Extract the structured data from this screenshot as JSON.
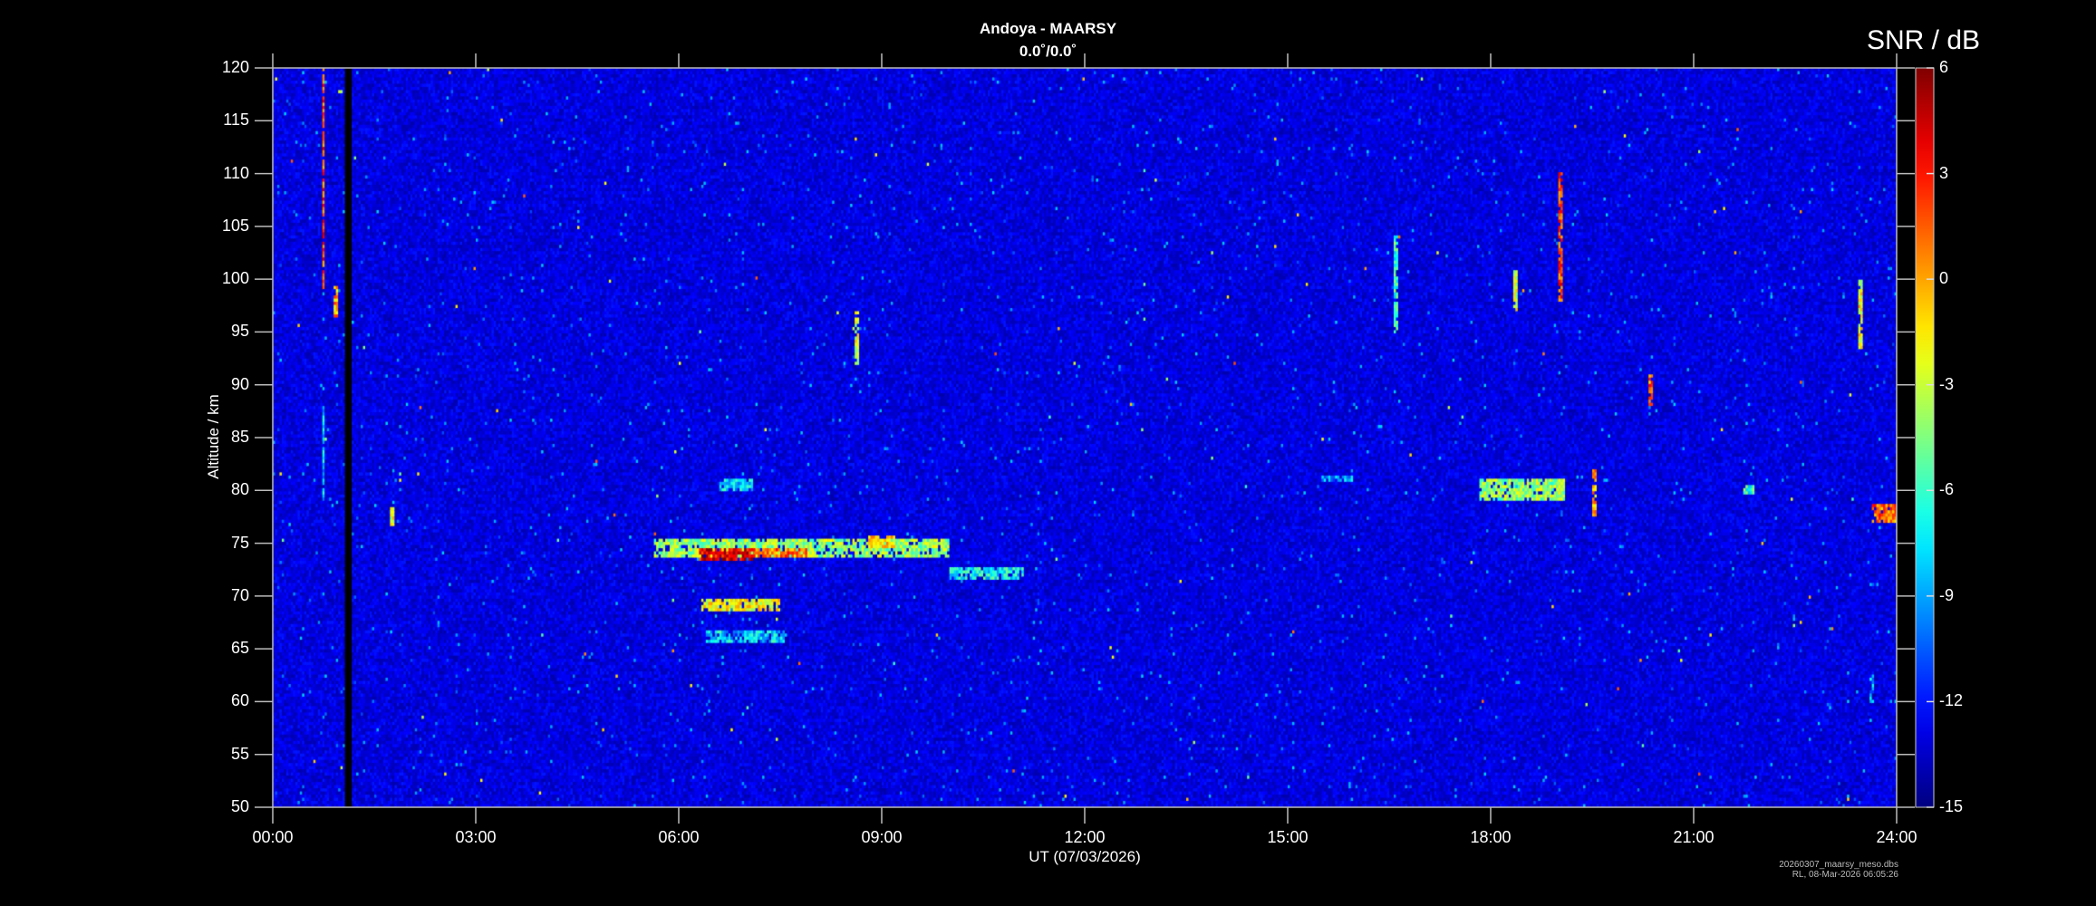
{
  "chart_data": {
    "type": "heatmap",
    "title": "Andoya - MAARSY",
    "subtitle": "0.0˚/0.0˚",
    "xlabel": "UT (07/03/2026)",
    "ylabel": "Altitude / km",
    "colorbar_label": "SNR / dB",
    "x_unit": "hours UT",
    "xlim": [
      0,
      24
    ],
    "ylim": [
      50,
      120
    ],
    "clim": [
      -15,
      6
    ],
    "colormap": "jet",
    "x_ticks": [
      "00:00",
      "03:00",
      "06:00",
      "09:00",
      "12:00",
      "15:00",
      "18:00",
      "21:00",
      "24:00"
    ],
    "y_ticks": [
      "50",
      "55",
      "60",
      "65",
      "70",
      "75",
      "80",
      "85",
      "90",
      "95",
      "100",
      "105",
      "110",
      "115",
      "120"
    ],
    "colorbar_ticks": [
      "6",
      "3",
      "0",
      "-3",
      "-6",
      "-9",
      "-12",
      "-15"
    ],
    "background_snr": -13,
    "data_gaps": [
      {
        "t_start": 1.07,
        "t_end": 1.17
      }
    ],
    "echo_regions": [
      {
        "t_start": 5.65,
        "t_end": 10.0,
        "alt_low": 73.5,
        "alt_high": 75.5,
        "snr": -4
      },
      {
        "t_start": 6.3,
        "t_end": 7.1,
        "alt_low": 73.2,
        "alt_high": 74.6,
        "snr": 4
      },
      {
        "t_start": 7.1,
        "t_end": 7.9,
        "alt_low": 73.6,
        "alt_high": 74.6,
        "snr": 1
      },
      {
        "t_start": 8.8,
        "t_end": 9.2,
        "alt_low": 74.6,
        "alt_high": 75.6,
        "snr": -1
      },
      {
        "t_start": 10.0,
        "t_end": 11.1,
        "alt_low": 71.6,
        "alt_high": 72.6,
        "snr": -7
      },
      {
        "t_start": 6.35,
        "t_end": 7.5,
        "alt_low": 68.4,
        "alt_high": 69.6,
        "snr": -2
      },
      {
        "t_start": 6.4,
        "t_end": 7.6,
        "alt_low": 65.5,
        "alt_high": 66.7,
        "snr": -8
      },
      {
        "t_start": 6.6,
        "t_end": 7.1,
        "alt_low": 80.0,
        "alt_high": 81.0,
        "snr": -8
      },
      {
        "t_start": 17.85,
        "t_end": 19.1,
        "alt_low": 79.0,
        "alt_high": 81.0,
        "snr": -4
      },
      {
        "t_start": 21.75,
        "t_end": 21.9,
        "alt_low": 79.5,
        "alt_high": 80.5,
        "snr": -6
      },
      {
        "t_start": 23.65,
        "t_end": 24.0,
        "alt_low": 77.0,
        "alt_high": 78.6,
        "snr": 1
      },
      {
        "t_start": 15.5,
        "t_end": 15.95,
        "alt_low": 80.7,
        "alt_high": 81.3,
        "snr": -9
      },
      {
        "t_start": 0.72,
        "t_end": 0.78,
        "alt_low": 99.0,
        "alt_high": 120.0,
        "snr": 2
      },
      {
        "t_start": 0.72,
        "t_end": 0.78,
        "alt_low": 79.0,
        "alt_high": 88.0,
        "snr": -8
      },
      {
        "t_start": 0.9,
        "t_end": 0.95,
        "alt_low": 96.5,
        "alt_high": 99.5,
        "snr": 0
      },
      {
        "t_start": 1.75,
        "t_end": 1.8,
        "alt_low": 76.5,
        "alt_high": 78.5,
        "snr": -2
      },
      {
        "t_start": 8.6,
        "t_end": 8.66,
        "alt_low": 92.0,
        "alt_high": 97.0,
        "snr": -3
      },
      {
        "t_start": 16.58,
        "t_end": 16.64,
        "alt_low": 95.0,
        "alt_high": 104.0,
        "snr": -6
      },
      {
        "t_start": 19.0,
        "t_end": 19.06,
        "alt_low": 98.0,
        "alt_high": 110.0,
        "snr": 2
      },
      {
        "t_start": 18.35,
        "t_end": 18.4,
        "alt_low": 97.0,
        "alt_high": 101.0,
        "snr": -3
      },
      {
        "t_start": 19.5,
        "t_end": 19.55,
        "alt_low": 77.5,
        "alt_high": 82.0,
        "snr": 0
      },
      {
        "t_start": 20.35,
        "t_end": 20.4,
        "alt_low": 88.0,
        "alt_high": 91.0,
        "snr": 1
      },
      {
        "t_start": 23.45,
        "t_end": 23.5,
        "alt_low": 93.5,
        "alt_high": 100.0,
        "snr": -2
      },
      {
        "t_start": 23.6,
        "t_end": 23.65,
        "alt_low": 60.0,
        "alt_high": 62.5,
        "snr": -9
      }
    ]
  },
  "footer": {
    "filename": "20260307_maarsy_meso.dbs",
    "generated": "RL, 08-Mar-2026 06:05:26"
  }
}
